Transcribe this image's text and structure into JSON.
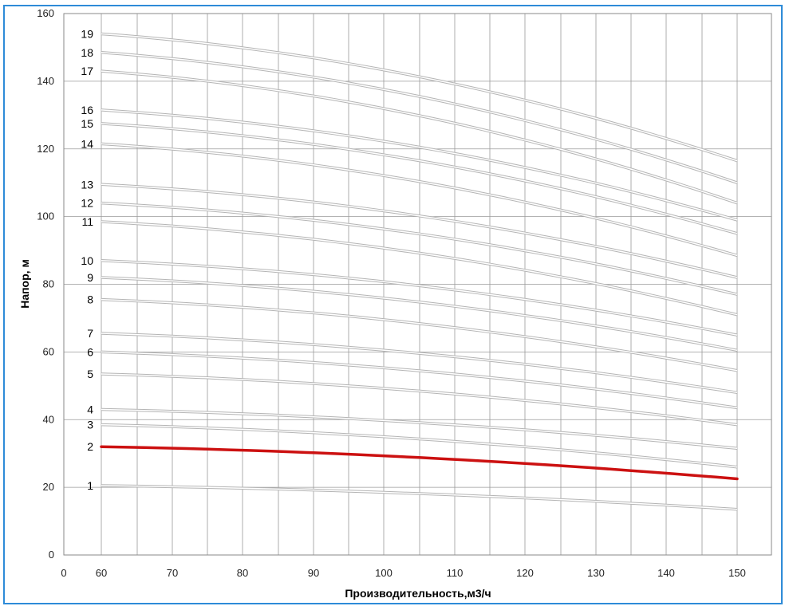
{
  "chart_data": {
    "type": "line",
    "title": "",
    "xlabel": "Производительность,м3/ч",
    "ylabel": "Напор, м",
    "xlim": [
      0,
      155
    ],
    "ylim": [
      0,
      160
    ],
    "x_ticks": [
      "0",
      "60",
      "70",
      "80",
      "90",
      "100",
      "110",
      "120",
      "130",
      "140",
      "150"
    ],
    "y_ticks": [
      0,
      20,
      40,
      60,
      80,
      100,
      120,
      140,
      160
    ],
    "grid": true,
    "legend": "none",
    "highlight_color": "#cc1111",
    "curve_color": "#b5b5b5",
    "x": [
      60,
      150
    ],
    "series": [
      {
        "name": "1",
        "values": [
          20.5,
          13.5
        ]
      },
      {
        "name": "2",
        "values": [
          32,
          22.5
        ],
        "highlight": true
      },
      {
        "name": "3",
        "values": [
          38.5,
          26
        ]
      },
      {
        "name": "4",
        "values": [
          43,
          31.5
        ]
      },
      {
        "name": "5",
        "values": [
          53.5,
          38.5
        ]
      },
      {
        "name": "6",
        "values": [
          60,
          43.5
        ]
      },
      {
        "name": "7",
        "values": [
          65.5,
          48
        ]
      },
      {
        "name": "8",
        "values": [
          75.5,
          54.5
        ]
      },
      {
        "name": "9",
        "values": [
          82,
          60.5
        ]
      },
      {
        "name": "10",
        "values": [
          87,
          65
        ]
      },
      {
        "name": "11",
        "values": [
          98.5,
          71
        ]
      },
      {
        "name": "12",
        "values": [
          104,
          77
        ]
      },
      {
        "name": "13",
        "values": [
          109.5,
          82
        ]
      },
      {
        "name": "14",
        "values": [
          121.5,
          88.5
        ]
      },
      {
        "name": "15",
        "values": [
          127.5,
          95
        ]
      },
      {
        "name": "16",
        "values": [
          131.5,
          99
        ]
      },
      {
        "name": "17",
        "values": [
          143,
          104
        ]
      },
      {
        "name": "18",
        "values": [
          148.5,
          110
        ]
      },
      {
        "name": "19",
        "values": [
          154,
          116.5
        ]
      }
    ]
  }
}
